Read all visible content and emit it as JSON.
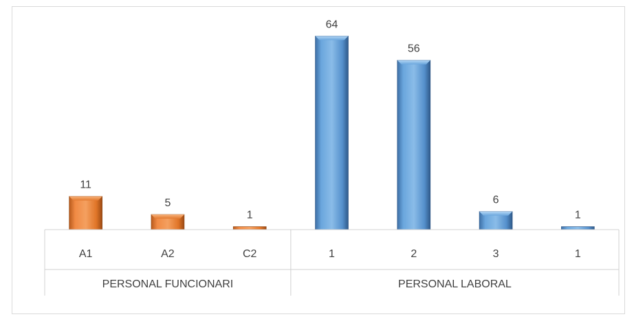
{
  "chart_data": {
    "type": "bar",
    "groups": [
      {
        "name": "PERSONAL FUNCIONARI",
        "color": "#ED7D31",
        "categories": [
          "A1",
          "A2",
          "C2"
        ],
        "values": [
          11,
          5,
          1
        ]
      },
      {
        "name": "PERSONAL LABORAL",
        "color": "#5B9BD5",
        "categories": [
          "1",
          "2",
          "3",
          "1"
        ],
        "values": [
          64,
          56,
          6,
          1
        ]
      }
    ],
    "data_labels": true,
    "grid": false,
    "legend": "none"
  }
}
